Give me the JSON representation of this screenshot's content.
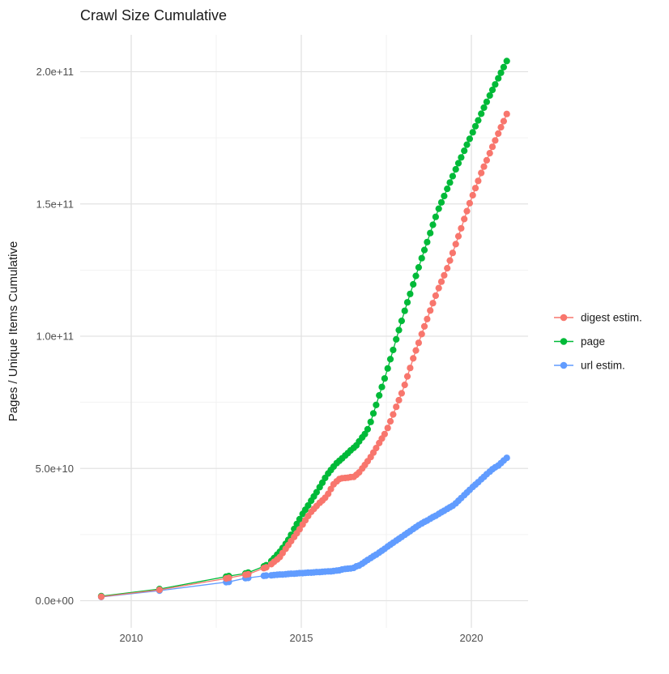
{
  "title": "Crawl Size Cumulative",
  "y_axis": {
    "label": "Pages / Unique Items Cumulative",
    "ticks": [
      "0.0e+00",
      "5.0e+10",
      "1.0e+11",
      "1.5e+11",
      "2.0e+11"
    ],
    "tick_values_billions": [
      0,
      50,
      100,
      150,
      200
    ],
    "minor_values_billions": [
      25,
      75,
      125,
      175
    ]
  },
  "x_axis": {
    "ticks": [
      "2010",
      "2015",
      "2020"
    ],
    "tick_values": [
      2010,
      2015,
      2020
    ],
    "minor_values": [
      2012.5,
      2017.5
    ]
  },
  "legend": {
    "items": [
      {
        "label": "digest estim.",
        "color": "#F8766D"
      },
      {
        "label": "page",
        "color": "#00BA38"
      },
      {
        "label": "url estim.",
        "color": "#619CFF"
      }
    ]
  },
  "chart_data": {
    "type": "scatter",
    "style": "points-with-line",
    "x_unit": "year",
    "value_unit": "billion pages (1e9)",
    "xlim": [
      2008.5,
      2021.65
    ],
    "ylim_billions": [
      -10,
      214
    ],
    "grid": "on",
    "legend_position": "right",
    "series": [
      {
        "name": "digest estim.",
        "color": "#F8766D",
        "points": [
          [
            2009.12,
            1.5
          ],
          [
            2010.83,
            4.1
          ],
          [
            2012.79,
            8.4
          ],
          [
            2012.87,
            8.6
          ],
          [
            2013.36,
            9.8
          ],
          [
            2013.44,
            10.0
          ],
          [
            2013.9,
            12.3
          ],
          [
            2013.97,
            12.6
          ],
          [
            2014.12,
            13.8
          ],
          [
            2014.2,
            14.7
          ],
          [
            2014.29,
            15.6
          ],
          [
            2014.37,
            16.5
          ],
          [
            2014.45,
            18.0
          ],
          [
            2014.54,
            19.6
          ],
          [
            2014.62,
            21.0
          ],
          [
            2014.7,
            22.5
          ],
          [
            2014.79,
            24.1
          ],
          [
            2014.87,
            25.5
          ],
          [
            2014.95,
            27.0
          ],
          [
            2015.04,
            28.8
          ],
          [
            2015.12,
            30.4
          ],
          [
            2015.2,
            32.0
          ],
          [
            2015.29,
            33.6
          ],
          [
            2015.37,
            34.7
          ],
          [
            2015.45,
            35.8
          ],
          [
            2015.54,
            37.0
          ],
          [
            2015.62,
            37.9
          ],
          [
            2015.7,
            38.9
          ],
          [
            2015.79,
            40.4
          ],
          [
            2015.87,
            42.2
          ],
          [
            2015.95,
            44.0
          ],
          [
            2016.04,
            45.1
          ],
          [
            2016.12,
            46.0
          ],
          [
            2016.2,
            46.3
          ],
          [
            2016.29,
            46.4
          ],
          [
            2016.37,
            46.5
          ],
          [
            2016.45,
            46.7
          ],
          [
            2016.54,
            46.8
          ],
          [
            2016.62,
            47.6
          ],
          [
            2016.7,
            48.5
          ],
          [
            2016.79,
            50.0
          ],
          [
            2016.87,
            51.3
          ],
          [
            2016.95,
            52.7
          ],
          [
            2017.04,
            54.3
          ],
          [
            2017.12,
            56.0
          ],
          [
            2017.2,
            57.7
          ],
          [
            2017.29,
            59.6
          ],
          [
            2017.37,
            61.3
          ],
          [
            2017.45,
            63.0
          ],
          [
            2017.54,
            65.3
          ],
          [
            2017.62,
            67.8
          ],
          [
            2017.7,
            70.4
          ],
          [
            2017.79,
            73.3
          ],
          [
            2017.87,
            75.8
          ],
          [
            2017.95,
            78.4
          ],
          [
            2018.04,
            81.6
          ],
          [
            2018.12,
            84.8
          ],
          [
            2018.2,
            88.0
          ],
          [
            2018.29,
            91.6
          ],
          [
            2018.37,
            94.6
          ],
          [
            2018.45,
            97.5
          ],
          [
            2018.54,
            100.8
          ],
          [
            2018.62,
            103.7
          ],
          [
            2018.7,
            106.5
          ],
          [
            2018.79,
            109.7
          ],
          [
            2018.87,
            112.5
          ],
          [
            2018.95,
            115.3
          ],
          [
            2019.04,
            118.2
          ],
          [
            2019.12,
            120.6
          ],
          [
            2019.2,
            123.0
          ],
          [
            2019.29,
            125.7
          ],
          [
            2019.37,
            128.6
          ],
          [
            2019.45,
            131.5
          ],
          [
            2019.54,
            134.8
          ],
          [
            2019.62,
            137.8
          ],
          [
            2019.7,
            140.8
          ],
          [
            2019.79,
            144.3
          ],
          [
            2019.87,
            147.3
          ],
          [
            2019.95,
            150.3
          ],
          [
            2020.04,
            153.3
          ],
          [
            2020.12,
            156.0
          ],
          [
            2020.2,
            158.7
          ],
          [
            2020.29,
            161.7
          ],
          [
            2020.37,
            164.1
          ],
          [
            2020.45,
            166.5
          ],
          [
            2020.54,
            169.2
          ],
          [
            2020.62,
            171.6
          ],
          [
            2020.7,
            174.0
          ],
          [
            2020.79,
            176.6
          ],
          [
            2020.87,
            179.0
          ],
          [
            2020.95,
            181.3
          ],
          [
            2021.04,
            184.0
          ]
        ]
      },
      {
        "name": "page",
        "color": "#00BA38",
        "points": [
          [
            2009.12,
            1.7
          ],
          [
            2010.83,
            4.4
          ],
          [
            2012.79,
            9.1
          ],
          [
            2012.87,
            9.3
          ],
          [
            2013.36,
            10.3
          ],
          [
            2013.44,
            10.6
          ],
          [
            2013.9,
            13.0
          ],
          [
            2013.97,
            13.4
          ],
          [
            2014.12,
            15.0
          ],
          [
            2014.2,
            16.1
          ],
          [
            2014.29,
            17.4
          ],
          [
            2014.37,
            18.5
          ],
          [
            2014.45,
            19.9
          ],
          [
            2014.54,
            21.5
          ],
          [
            2014.62,
            23.0
          ],
          [
            2014.7,
            24.9
          ],
          [
            2014.79,
            27.1
          ],
          [
            2014.87,
            29.0
          ],
          [
            2014.95,
            30.8
          ],
          [
            2015.04,
            32.8
          ],
          [
            2015.12,
            34.4
          ],
          [
            2015.2,
            36.0
          ],
          [
            2015.29,
            37.8
          ],
          [
            2015.37,
            39.4
          ],
          [
            2015.45,
            41.0
          ],
          [
            2015.54,
            42.9
          ],
          [
            2015.62,
            44.6
          ],
          [
            2015.7,
            46.4
          ],
          [
            2015.79,
            48.1
          ],
          [
            2015.87,
            49.4
          ],
          [
            2015.95,
            50.7
          ],
          [
            2016.04,
            52.0
          ],
          [
            2016.12,
            52.9
          ],
          [
            2016.2,
            53.8
          ],
          [
            2016.29,
            54.9
          ],
          [
            2016.37,
            55.8
          ],
          [
            2016.45,
            56.8
          ],
          [
            2016.54,
            57.8
          ],
          [
            2016.62,
            58.7
          ],
          [
            2016.7,
            60.2
          ],
          [
            2016.79,
            61.7
          ],
          [
            2016.87,
            63.0
          ],
          [
            2016.95,
            64.8
          ],
          [
            2017.04,
            67.6
          ],
          [
            2017.12,
            70.8
          ],
          [
            2017.2,
            74.0
          ],
          [
            2017.29,
            77.6
          ],
          [
            2017.37,
            80.8
          ],
          [
            2017.45,
            84.0
          ],
          [
            2017.54,
            87.8
          ],
          [
            2017.62,
            91.3
          ],
          [
            2017.7,
            94.8
          ],
          [
            2017.79,
            98.8
          ],
          [
            2017.87,
            102.3
          ],
          [
            2017.95,
            105.8
          ],
          [
            2018.04,
            109.6
          ],
          [
            2018.12,
            112.8
          ],
          [
            2018.2,
            116.0
          ],
          [
            2018.29,
            119.6
          ],
          [
            2018.37,
            122.8
          ],
          [
            2018.45,
            126.0
          ],
          [
            2018.54,
            129.5
          ],
          [
            2018.62,
            132.6
          ],
          [
            2018.7,
            135.6
          ],
          [
            2018.79,
            139.0
          ],
          [
            2018.87,
            142.1
          ],
          [
            2018.95,
            145.1
          ],
          [
            2019.04,
            148.2
          ],
          [
            2019.12,
            150.6
          ],
          [
            2019.2,
            153.0
          ],
          [
            2019.29,
            155.7
          ],
          [
            2019.37,
            158.1
          ],
          [
            2019.45,
            160.5
          ],
          [
            2019.54,
            163.1
          ],
          [
            2019.62,
            165.4
          ],
          [
            2019.7,
            167.6
          ],
          [
            2019.79,
            170.1
          ],
          [
            2019.87,
            172.4
          ],
          [
            2019.95,
            174.6
          ],
          [
            2020.04,
            177.1
          ],
          [
            2020.12,
            179.4
          ],
          [
            2020.2,
            181.6
          ],
          [
            2020.29,
            184.1
          ],
          [
            2020.37,
            186.4
          ],
          [
            2020.45,
            188.6
          ],
          [
            2020.54,
            191.0
          ],
          [
            2020.62,
            193.1
          ],
          [
            2020.7,
            195.2
          ],
          [
            2020.79,
            197.5
          ],
          [
            2020.87,
            199.6
          ],
          [
            2020.95,
            201.7
          ],
          [
            2021.04,
            204.0
          ]
        ]
      },
      {
        "name": "url estim.",
        "color": "#619CFF",
        "points": [
          [
            2009.12,
            1.4
          ],
          [
            2010.83,
            3.8
          ],
          [
            2012.79,
            7.0
          ],
          [
            2012.87,
            7.1
          ],
          [
            2013.36,
            8.5
          ],
          [
            2013.44,
            8.6
          ],
          [
            2013.9,
            9.4
          ],
          [
            2013.97,
            9.5
          ],
          [
            2014.12,
            9.6
          ],
          [
            2014.2,
            9.7
          ],
          [
            2014.29,
            9.8
          ],
          [
            2014.37,
            9.9
          ],
          [
            2014.45,
            9.9
          ],
          [
            2014.54,
            10.0
          ],
          [
            2014.62,
            10.1
          ],
          [
            2014.7,
            10.2
          ],
          [
            2014.79,
            10.2
          ],
          [
            2014.87,
            10.3
          ],
          [
            2014.95,
            10.4
          ],
          [
            2015.04,
            10.4
          ],
          [
            2015.12,
            10.5
          ],
          [
            2015.2,
            10.6
          ],
          [
            2015.29,
            10.6
          ],
          [
            2015.37,
            10.7
          ],
          [
            2015.45,
            10.8
          ],
          [
            2015.54,
            10.8
          ],
          [
            2015.62,
            10.9
          ],
          [
            2015.7,
            11.0
          ],
          [
            2015.79,
            11.1
          ],
          [
            2015.87,
            11.1
          ],
          [
            2015.95,
            11.2
          ],
          [
            2016.04,
            11.4
          ],
          [
            2016.12,
            11.5
          ],
          [
            2016.2,
            11.8
          ],
          [
            2016.29,
            12.0
          ],
          [
            2016.37,
            12.1
          ],
          [
            2016.45,
            12.2
          ],
          [
            2016.54,
            12.4
          ],
          [
            2016.62,
            13.0
          ],
          [
            2016.7,
            13.3
          ],
          [
            2016.79,
            14.0
          ],
          [
            2016.87,
            14.7
          ],
          [
            2016.95,
            15.4
          ],
          [
            2017.04,
            16.1
          ],
          [
            2017.12,
            16.8
          ],
          [
            2017.2,
            17.4
          ],
          [
            2017.29,
            18.2
          ],
          [
            2017.37,
            18.9
          ],
          [
            2017.45,
            19.6
          ],
          [
            2017.54,
            20.5
          ],
          [
            2017.62,
            21.2
          ],
          [
            2017.7,
            21.9
          ],
          [
            2017.79,
            22.7
          ],
          [
            2017.87,
            23.4
          ],
          [
            2017.95,
            24.1
          ],
          [
            2018.04,
            24.9
          ],
          [
            2018.12,
            25.6
          ],
          [
            2018.2,
            26.3
          ],
          [
            2018.29,
            27.1
          ],
          [
            2018.37,
            27.8
          ],
          [
            2018.45,
            28.5
          ],
          [
            2018.54,
            29.2
          ],
          [
            2018.62,
            29.8
          ],
          [
            2018.7,
            30.3
          ],
          [
            2018.79,
            31.0
          ],
          [
            2018.87,
            31.6
          ],
          [
            2018.95,
            32.1
          ],
          [
            2019.04,
            32.8
          ],
          [
            2019.12,
            33.4
          ],
          [
            2019.2,
            34.0
          ],
          [
            2019.29,
            34.7
          ],
          [
            2019.37,
            35.3
          ],
          [
            2019.45,
            35.9
          ],
          [
            2019.54,
            36.8
          ],
          [
            2019.62,
            37.8
          ],
          [
            2019.7,
            38.8
          ],
          [
            2019.79,
            39.9
          ],
          [
            2019.87,
            40.9
          ],
          [
            2019.95,
            41.9
          ],
          [
            2020.04,
            43.0
          ],
          [
            2020.12,
            43.9
          ],
          [
            2020.2,
            44.8
          ],
          [
            2020.29,
            45.9
          ],
          [
            2020.37,
            46.8
          ],
          [
            2020.45,
            47.8
          ],
          [
            2020.54,
            48.8
          ],
          [
            2020.62,
            49.7
          ],
          [
            2020.7,
            50.4
          ],
          [
            2020.79,
            51.1
          ],
          [
            2020.87,
            52.0
          ],
          [
            2020.95,
            53.0
          ],
          [
            2021.04,
            54.0
          ]
        ]
      }
    ]
  }
}
